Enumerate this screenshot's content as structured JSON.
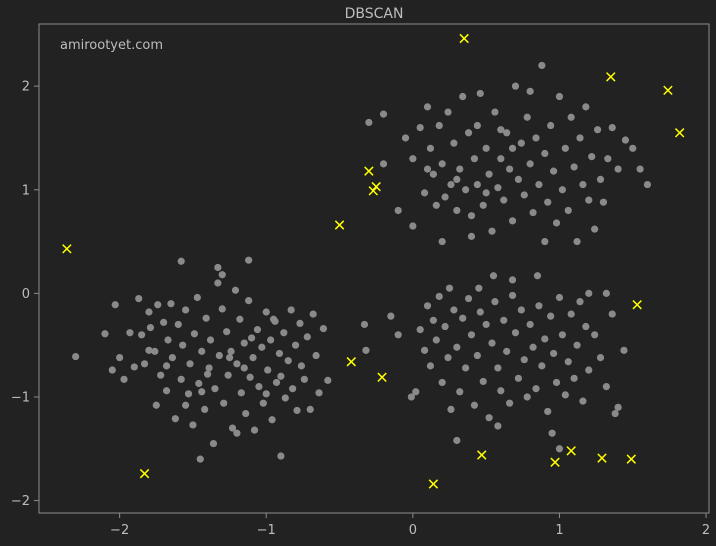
{
  "chart_data": {
    "type": "scatter",
    "title": "DBSCAN",
    "watermark": "amirootyet.com",
    "xlabel": "",
    "ylabel": "",
    "xlim": [
      -2.55,
      2.02
    ],
    "ylim": [
      -2.12,
      2.6
    ],
    "xticks": [
      -2,
      -1,
      0,
      1,
      2
    ],
    "yticks": [
      -2,
      -1,
      0,
      1,
      2
    ],
    "xtick_labels": [
      "−2",
      "−1",
      "0",
      "1",
      "2"
    ],
    "ytick_labels": [
      "−2",
      "−1",
      "0",
      "1",
      "2"
    ],
    "grid": false,
    "colors": {
      "background": "#222222",
      "axes_edge": "#8c8c8c",
      "cluster_point": "#8a8a8a",
      "noise_marker": "#ffff00",
      "text": "#bdbdbd"
    },
    "series": [
      {
        "marker": "circle",
        "points": [
          [
            -2.3,
            -0.61
          ],
          [
            -2.1,
            -0.39
          ],
          [
            -2.05,
            -0.74
          ],
          [
            -2.03,
            -0.11
          ],
          [
            -2,
            -0.62
          ],
          [
            -1.97,
            -0.83
          ],
          [
            -1.93,
            -0.38
          ],
          [
            -1.9,
            -0.71
          ],
          [
            -1.87,
            -0.05
          ],
          [
            -1.85,
            -0.4
          ],
          [
            -1.83,
            -0.68
          ],
          [
            -1.8,
            -0.18
          ],
          [
            -1.79,
            -0.33
          ],
          [
            -1.76,
            -0.56
          ],
          [
            -1.74,
            -0.11
          ],
          [
            -1.72,
            -0.79
          ],
          [
            -1.7,
            -0.28
          ],
          [
            -1.68,
            -0.94
          ],
          [
            -1.67,
            -0.45
          ],
          [
            -1.65,
            -0.1
          ],
          [
            -1.64,
            -0.62
          ],
          [
            -1.62,
            -1.21
          ],
          [
            -1.6,
            -0.3
          ],
          [
            -1.58,
            -0.83
          ],
          [
            -1.57,
            -0.5
          ],
          [
            -1.55,
            -0.16
          ],
          [
            -1.53,
            -0.97
          ],
          [
            -1.52,
            -0.68
          ],
          [
            -1.5,
            -1.27
          ],
          [
            -1.49,
            -0.39
          ],
          [
            -1.47,
            -0.04
          ],
          [
            -1.46,
            -0.87
          ],
          [
            -1.44,
            -0.56
          ],
          [
            -1.42,
            -1.12
          ],
          [
            -1.41,
            -0.24
          ],
          [
            -1.39,
            -0.72
          ],
          [
            -1.38,
            -0.45
          ],
          [
            -1.36,
            -1.45
          ],
          [
            -1.35,
            -0.92
          ],
          [
            -1.33,
            0.1
          ],
          [
            -1.32,
            -0.6
          ],
          [
            -1.3,
            -0.15
          ],
          [
            -1.29,
            -1.06
          ],
          [
            -1.27,
            -0.37
          ],
          [
            -1.26,
            -0.79
          ],
          [
            -1.24,
            -0.56
          ],
          [
            -1.23,
            -1.3
          ],
          [
            -1.21,
            0.03
          ],
          [
            -1.2,
            -0.68
          ],
          [
            -1.18,
            -0.25
          ],
          [
            -1.17,
            -0.96
          ],
          [
            -1.15,
            -0.48
          ],
          [
            -1.14,
            -1.16
          ],
          [
            -1.12,
            -0.07
          ],
          [
            -1.11,
            -0.81
          ],
          [
            -1.09,
            -0.62
          ],
          [
            -1.08,
            -1.32
          ],
          [
            -1.06,
            -0.35
          ],
          [
            -1.05,
            -0.9
          ],
          [
            -1.03,
            -0.52
          ],
          [
            -1.02,
            -1.06
          ],
          [
            -1,
            -0.18
          ],
          [
            -0.99,
            -0.74
          ],
          [
            -0.97,
            -0.45
          ],
          [
            -0.96,
            -1.22
          ],
          [
            -0.94,
            -0.27
          ],
          [
            -0.93,
            -0.86
          ],
          [
            -0.91,
            -0.58
          ],
          [
            -0.9,
            -1.57
          ],
          [
            -0.88,
            -0.38
          ],
          [
            -0.87,
            -1.01
          ],
          [
            -0.85,
            -0.65
          ],
          [
            -0.83,
            -0.16
          ],
          [
            -0.82,
            -0.92
          ],
          [
            -0.8,
            -0.5
          ],
          [
            -0.79,
            -1.13
          ],
          [
            -0.77,
            -0.29
          ],
          [
            -0.76,
            -0.7
          ],
          [
            -0.74,
            -0.83
          ],
          [
            -0.72,
            -0.42
          ],
          [
            -0.7,
            -1.12
          ],
          [
            -0.68,
            -0.2
          ],
          [
            -0.66,
            -0.6
          ],
          [
            -0.64,
            -0.96
          ],
          [
            -0.61,
            -0.34
          ],
          [
            -0.58,
            -0.84
          ],
          [
            -1.58,
            0.31
          ],
          [
            -1.33,
            0.25
          ],
          [
            -1.12,
            0.32
          ],
          [
            -1.45,
            -1.6
          ],
          [
            -1.2,
            -1.35
          ],
          [
            -1.55,
            -1.08
          ],
          [
            -1.75,
            -1.08
          ],
          [
            -1.3,
            0.18
          ],
          [
            -1.4,
            -0.78
          ],
          [
            -1.25,
            -0.62
          ],
          [
            -1.1,
            -0.43
          ],
          [
            -0.95,
            -0.25
          ],
          [
            -1.68,
            -0.7
          ],
          [
            -1.8,
            -0.55
          ],
          [
            -1.44,
            -0.95
          ],
          [
            -1.0,
            -0.97
          ],
          [
            -0.9,
            -0.8
          ],
          [
            -1.15,
            -0.72
          ],
          [
            -0.33,
            -0.3
          ],
          [
            -0.32,
            -0.55
          ],
          [
            -0.15,
            -0.22
          ],
          [
            -0.1,
            -0.4
          ],
          [
            -0.01,
            -1.0
          ],
          [
            0.02,
            -0.95
          ],
          [
            0.05,
            -0.35
          ],
          [
            0.08,
            -0.55
          ],
          [
            0.1,
            -0.12
          ],
          [
            0.12,
            -0.7
          ],
          [
            0.14,
            -0.26
          ],
          [
            0.16,
            -0.45
          ],
          [
            0.18,
            -0.03
          ],
          [
            0.2,
            -0.86
          ],
          [
            0.22,
            -0.32
          ],
          [
            0.24,
            -0.62
          ],
          [
            0.26,
            -1.12
          ],
          [
            0.28,
            -0.16
          ],
          [
            0.3,
            -0.52
          ],
          [
            0.32,
            -0.95
          ],
          [
            0.34,
            -0.24
          ],
          [
            0.36,
            -0.72
          ],
          [
            0.38,
            -0.05
          ],
          [
            0.4,
            -0.4
          ],
          [
            0.42,
            -1.08
          ],
          [
            0.44,
            -0.6
          ],
          [
            0.46,
            -0.18
          ],
          [
            0.48,
            -0.85
          ],
          [
            0.5,
            -0.3
          ],
          [
            0.52,
            -1.2
          ],
          [
            0.54,
            -0.48
          ],
          [
            0.56,
            -0.08
          ],
          [
            0.58,
            -0.72
          ],
          [
            0.6,
            -0.94
          ],
          [
            0.62,
            -0.26
          ],
          [
            0.64,
            -0.56
          ],
          [
            0.66,
            -1.06
          ],
          [
            0.68,
            -0.02
          ],
          [
            0.7,
            -0.38
          ],
          [
            0.72,
            -0.82
          ],
          [
            0.74,
            -0.16
          ],
          [
            0.76,
            -0.64
          ],
          [
            0.78,
            -1.0
          ],
          [
            0.8,
            -0.3
          ],
          [
            0.82,
            -0.52
          ],
          [
            0.84,
            -0.92
          ],
          [
            0.86,
            -0.12
          ],
          [
            0.88,
            -0.7
          ],
          [
            0.9,
            -0.44
          ],
          [
            0.92,
            -1.14
          ],
          [
            0.94,
            -0.22
          ],
          [
            0.96,
            -0.58
          ],
          [
            0.98,
            -0.86
          ],
          [
            1.0,
            -0.04
          ],
          [
            1.02,
            -0.4
          ],
          [
            1.04,
            -0.98
          ],
          [
            1.06,
            -0.66
          ],
          [
            1.08,
            -0.2
          ],
          [
            1.1,
            -0.82
          ],
          [
            1.12,
            -0.5
          ],
          [
            1.14,
            -0.08
          ],
          [
            1.16,
            -1.04
          ],
          [
            1.18,
            -0.32
          ],
          [
            1.2,
            -0.74
          ],
          [
            1.24,
            -0.4
          ],
          [
            1.28,
            -0.62
          ],
          [
            1.32,
            -0.9
          ],
          [
            1.36,
            -0.2
          ],
          [
            1.4,
            -1.1
          ],
          [
            1.44,
            -0.55
          ],
          [
            0.3,
            -1.42
          ],
          [
            0.58,
            -1.28
          ],
          [
            0.95,
            -1.35
          ],
          [
            1.0,
            -1.5
          ],
          [
            0.55,
            0.17
          ],
          [
            0.68,
            0.13
          ],
          [
            0.85,
            0.17
          ],
          [
            1.2,
            0.0
          ],
          [
            1.32,
            0.0
          ],
          [
            1.38,
            -1.16
          ],
          [
            0.25,
            0.05
          ],
          [
            0.45,
            0.05
          ],
          [
            -0.3,
            1.65
          ],
          [
            -0.2,
            1.73
          ],
          [
            -0.05,
            1.5
          ],
          [
            0,
            1.3
          ],
          [
            0.05,
            1.6
          ],
          [
            0.08,
            0.97
          ],
          [
            0.1,
            1.8
          ],
          [
            0.12,
            1.4
          ],
          [
            0.14,
            1.15
          ],
          [
            0.16,
            0.85
          ],
          [
            0.18,
            1.62
          ],
          [
            0.2,
            1.25
          ],
          [
            0.22,
            0.93
          ],
          [
            0.24,
            1.75
          ],
          [
            0.26,
            1.05
          ],
          [
            0.28,
            1.45
          ],
          [
            0.3,
            0.8
          ],
          [
            0.32,
            1.2
          ],
          [
            0.34,
            1.9
          ],
          [
            0.36,
            1.0
          ],
          [
            0.38,
            1.55
          ],
          [
            0.4,
            0.75
          ],
          [
            0.42,
            1.3
          ],
          [
            0.44,
            1.05
          ],
          [
            0.46,
            1.93
          ],
          [
            0.48,
            0.85
          ],
          [
            0.5,
            1.4
          ],
          [
            0.52,
            1.15
          ],
          [
            0.54,
            0.6
          ],
          [
            0.56,
            1.75
          ],
          [
            0.58,
            1.02
          ],
          [
            0.6,
            1.3
          ],
          [
            0.62,
            0.9
          ],
          [
            0.64,
            1.55
          ],
          [
            0.66,
            1.2
          ],
          [
            0.68,
            0.7
          ],
          [
            0.7,
            2.0
          ],
          [
            0.72,
            1.1
          ],
          [
            0.74,
            1.45
          ],
          [
            0.76,
            0.95
          ],
          [
            0.78,
            1.7
          ],
          [
            0.8,
            1.25
          ],
          [
            0.82,
            0.78
          ],
          [
            0.84,
            1.5
          ],
          [
            0.86,
            1.05
          ],
          [
            0.88,
            2.2
          ],
          [
            0.9,
            1.35
          ],
          [
            0.92,
            0.88
          ],
          [
            0.94,
            1.62
          ],
          [
            0.96,
            1.18
          ],
          [
            0.98,
            0.68
          ],
          [
            1.0,
            1.9
          ],
          [
            1.02,
            1.0
          ],
          [
            1.04,
            1.4
          ],
          [
            1.06,
            0.8
          ],
          [
            1.08,
            1.7
          ],
          [
            1.1,
            1.22
          ],
          [
            1.12,
            0.5
          ],
          [
            1.14,
            1.5
          ],
          [
            1.16,
            1.05
          ],
          [
            1.18,
            1.8
          ],
          [
            1.2,
            0.9
          ],
          [
            1.22,
            1.32
          ],
          [
            1.24,
            0.62
          ],
          [
            1.26,
            1.58
          ],
          [
            1.28,
            1.1
          ],
          [
            1.3,
            0.88
          ],
          [
            1.33,
            1.3
          ],
          [
            1.36,
            1.6
          ],
          [
            1.4,
            1.2
          ],
          [
            1.45,
            1.48
          ],
          [
            1.5,
            1.4
          ],
          [
            1.55,
            1.2
          ],
          [
            1.6,
            1.05
          ],
          [
            -0.2,
            1.25
          ],
          [
            -0.1,
            0.8
          ],
          [
            0.0,
            0.65
          ],
          [
            0.2,
            0.5
          ],
          [
            0.4,
            0.55
          ],
          [
            0.9,
            0.5
          ],
          [
            0.1,
            1.2
          ],
          [
            0.6,
            1.58
          ],
          [
            0.8,
            1.95
          ],
          [
            0.44,
            1.62
          ],
          [
            0.68,
            1.4
          ],
          [
            0.5,
            0.97
          ],
          [
            0.3,
            1.1
          ]
        ]
      },
      {
        "marker": "x",
        "points": [
          [
            -2.36,
            0.43
          ],
          [
            -1.83,
            -1.74
          ],
          [
            -0.5,
            0.66
          ],
          [
            -0.42,
            -0.66
          ],
          [
            -0.3,
            1.18
          ],
          [
            -0.27,
            0.99
          ],
          [
            -0.25,
            1.03
          ],
          [
            -0.21,
            -0.81
          ],
          [
            0.14,
            -1.84
          ],
          [
            0.35,
            2.46
          ],
          [
            0.47,
            -1.56
          ],
          [
            0.97,
            -1.63
          ],
          [
            1.08,
            -1.52
          ],
          [
            1.29,
            -1.59
          ],
          [
            1.35,
            2.09
          ],
          [
            1.49,
            -1.6
          ],
          [
            1.53,
            -0.11
          ],
          [
            1.74,
            1.96
          ],
          [
            1.82,
            1.55
          ]
        ]
      }
    ]
  }
}
